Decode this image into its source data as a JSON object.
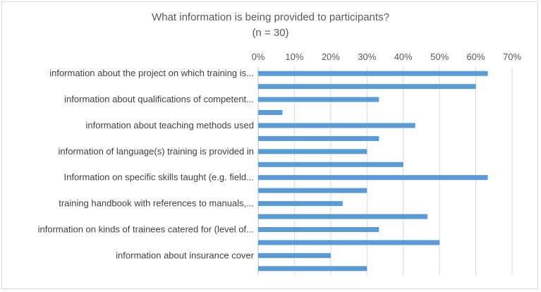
{
  "chart_data": {
    "type": "bar",
    "orientation": "horizontal",
    "title": "What information is being provided to participants?",
    "subtitle": "(n = 30)",
    "xlim": [
      0,
      0.7
    ],
    "x_ticks": [
      "0%",
      "10%",
      "20%",
      "30%",
      "40%",
      "50%",
      "60%",
      "70%"
    ],
    "x_axis_position": "top",
    "grid": true,
    "bar_color": "#5b9bd5",
    "categories": [
      "information about the project on which training is...",
      "",
      "information about qualifications of competent...",
      "",
      "information about teaching methods used",
      "",
      "information of language(s) training is provided in",
      "",
      "Information on specific skills taught (e.g. field...",
      "",
      "training handbook with references to manuals,...",
      "",
      "information on kinds of trainees catered for (level of...",
      "",
      "information about insurance cover",
      ""
    ],
    "values": [
      0.633,
      0.6,
      0.333,
      0.067,
      0.433,
      0.333,
      0.3,
      0.4,
      0.633,
      0.3,
      0.233,
      0.467,
      0.333,
      0.5,
      0.2,
      0.3
    ]
  }
}
